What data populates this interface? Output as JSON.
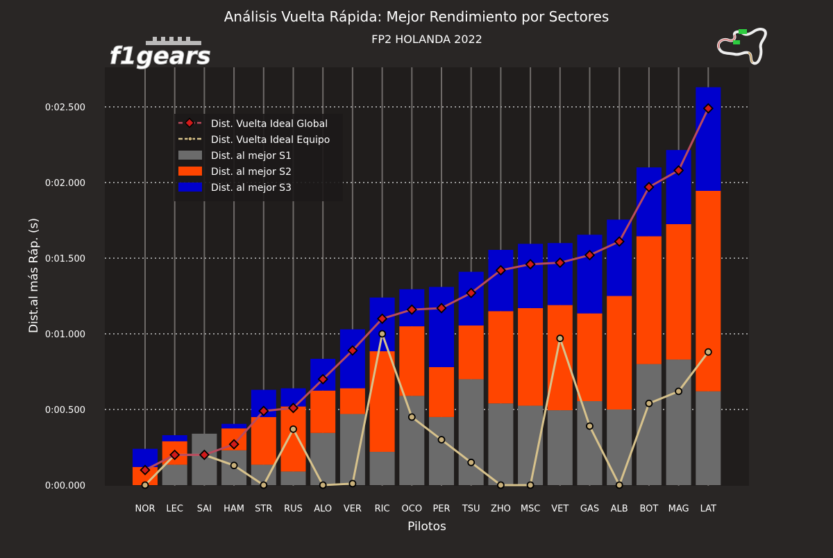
{
  "chart_data": {
    "type": "bar",
    "title": "Análisis Vuelta Rápida: Mejor Rendimiento por Sectores",
    "subtitle": "FP2 HOLANDA 2022",
    "xlabel": "Pilotos",
    "ylabel": "Dist.al más Ráp. (s)",
    "ylim": [
      0,
      2.65
    ],
    "yticks": [
      0,
      0.5,
      1.0,
      1.5,
      2.0,
      2.5
    ],
    "ytick_labels": [
      "0:00.000",
      "0:00.500",
      "0:01.000",
      "0:01.500",
      "0:02.000",
      "0:02.500"
    ],
    "grid": true,
    "legend_position": "top-left",
    "stacked": true,
    "categories": [
      "NOR",
      "LEC",
      "SAI",
      "HAM",
      "STR",
      "RUS",
      "ALO",
      "VER",
      "RIC",
      "OCO",
      "PER",
      "TSU",
      "ZHO",
      "MSC",
      "VET",
      "GAS",
      "ALB",
      "BOT",
      "MAG",
      "LAT"
    ],
    "series": [
      {
        "name": "Dist. al mejor S1",
        "kind": "bar",
        "color": "#6b6b6b",
        "values": [
          0.0,
          0.135,
          0.34,
          0.23,
          0.135,
          0.09,
          0.345,
          0.47,
          0.22,
          0.59,
          0.45,
          0.7,
          0.54,
          0.525,
          0.495,
          0.555,
          0.5,
          0.8,
          0.83,
          0.62
        ]
      },
      {
        "name": "Dist. al mejor S2",
        "kind": "bar",
        "color": "#ff4500",
        "values": [
          0.12,
          0.155,
          0.0,
          0.145,
          0.315,
          0.43,
          0.28,
          0.17,
          0.665,
          0.46,
          0.33,
          0.355,
          0.61,
          0.645,
          0.695,
          0.58,
          0.75,
          0.845,
          0.895,
          1.325
        ]
      },
      {
        "name": "Dist. al mejor S3",
        "kind": "bar",
        "color": "#0000cd",
        "values": [
          0.12,
          0.04,
          0.0,
          0.03,
          0.18,
          0.12,
          0.21,
          0.39,
          0.355,
          0.245,
          0.53,
          0.355,
          0.405,
          0.425,
          0.41,
          0.52,
          0.505,
          0.455,
          0.49,
          0.685
        ]
      },
      {
        "name": "Dist. Vuelta Ideal Global",
        "kind": "line",
        "color": "#b94b5e",
        "marker_fill": "#d11a1a",
        "values": [
          0.1,
          0.2,
          0.2,
          0.27,
          0.49,
          0.51,
          0.7,
          0.89,
          1.1,
          1.16,
          1.17,
          1.27,
          1.42,
          1.46,
          1.47,
          1.52,
          1.61,
          1.97,
          2.08,
          2.49
        ]
      },
      {
        "name": "Dist. Vuelta Ideal Equipo",
        "kind": "line",
        "color": "#d7c28c",
        "marker_fill": "#c9b07a",
        "values": [
          0.0,
          0.2,
          0.2,
          0.13,
          0.0,
          0.37,
          0.0,
          0.01,
          1.0,
          0.45,
          0.3,
          0.15,
          0.0,
          0.0,
          0.97,
          0.39,
          0.0,
          0.54,
          0.62,
          0.88
        ]
      }
    ]
  },
  "logo_text": "f1gears",
  "colors": {
    "background": "#292625",
    "plot_background": "#201d1c",
    "text": "#ffffff",
    "grid": "#8a8a8a"
  },
  "icons": [
    "f1gears-logo",
    "track-map-icon"
  ]
}
